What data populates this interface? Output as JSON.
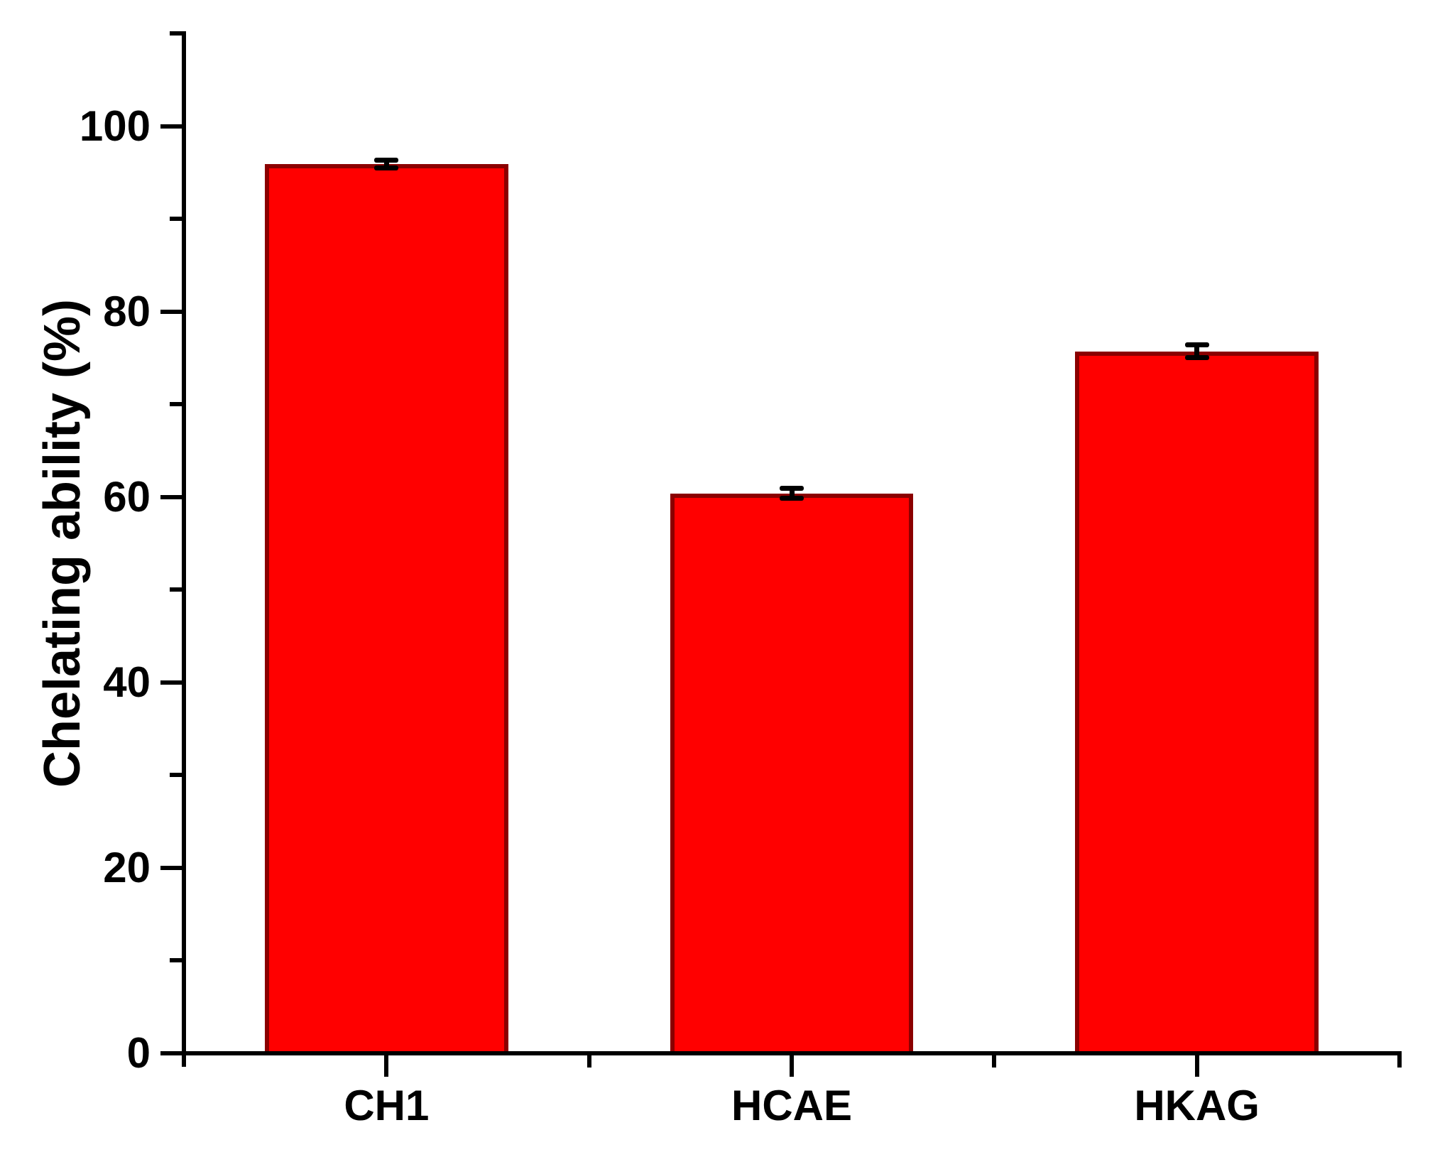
{
  "chart_data": {
    "type": "bar",
    "categories": [
      "CH1",
      "HCAE",
      "HKAG"
    ],
    "values": [
      95.9,
      60.4,
      75.7
    ],
    "errors": [
      0.4,
      0.5,
      0.7
    ],
    "title": "",
    "xlabel": "",
    "ylabel": "Chelating ability (%)",
    "ylim": [
      0,
      110
    ],
    "yticks_major": [
      0,
      20,
      40,
      60,
      80,
      100
    ],
    "yticks_minor": [
      10,
      30,
      50,
      70,
      90,
      110
    ],
    "grid": false,
    "legend_position": "none",
    "bar_color": "#ff0000",
    "bar_border_color": "#8b0000",
    "error_bar_color": "#000000",
    "axis_color": "#000000",
    "background_color": "#ffffff"
  }
}
